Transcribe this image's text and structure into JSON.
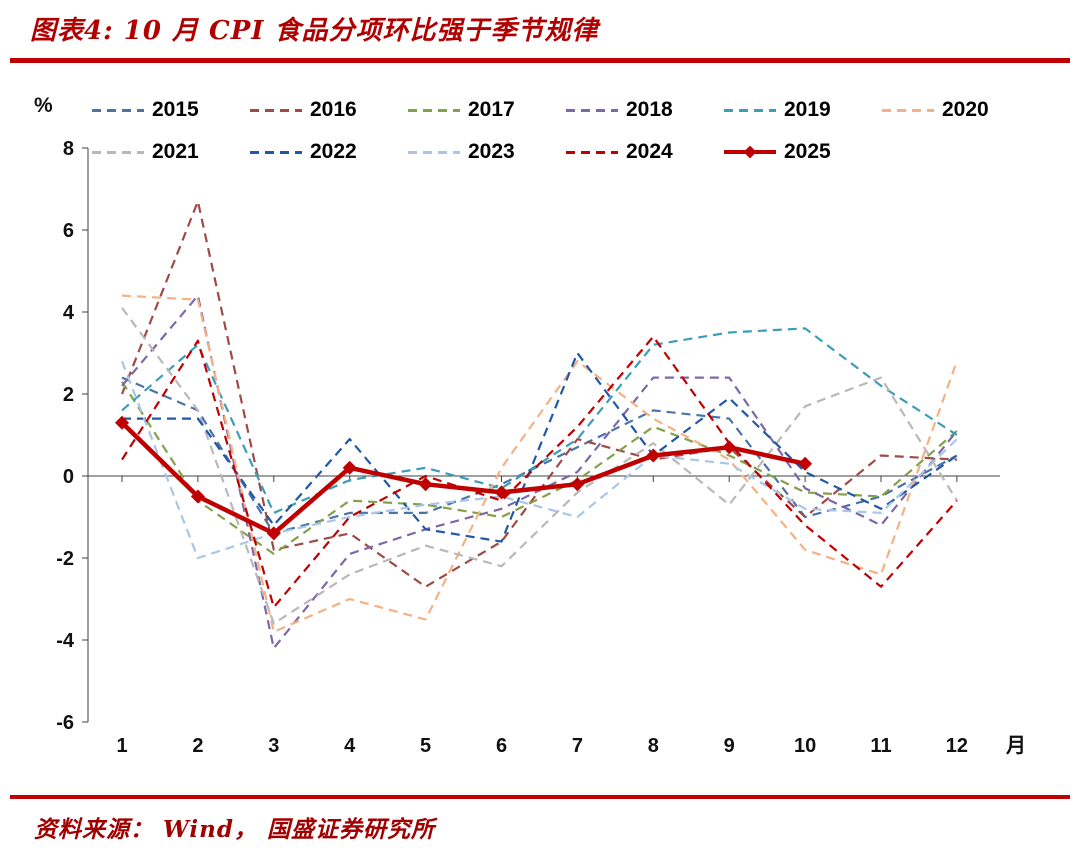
{
  "header": {
    "title": "图表4:  10 月 CPI 食品分项环比强于季节规律"
  },
  "footer": {
    "source": "资料来源： Wind， 国盛证券研究所"
  },
  "chart_data": {
    "type": "line",
    "title": "10 月 CPI 食品分项环比强于季节规律",
    "unit_label": "%",
    "x_suffix_label": "月",
    "categories": [
      1,
      2,
      3,
      4,
      5,
      6,
      7,
      8,
      9,
      10,
      11,
      12
    ],
    "ylim": [
      -6,
      8
    ],
    "yticks": [
      8,
      6,
      4,
      2,
      0,
      -2,
      -4,
      -6
    ],
    "grid": false,
    "legend_position": "top",
    "accent_color": "#c00000",
    "series": [
      {
        "name": "2015",
        "color": "#4a74a8",
        "style": "dashed",
        "values": [
          2.4,
          1.6,
          -1.4,
          -0.9,
          -0.9,
          -0.2,
          0.7,
          1.6,
          1.4,
          -1.0,
          -0.5,
          0.5
        ]
      },
      {
        "name": "2016",
        "color": "#9e4b47",
        "style": "dashed",
        "values": [
          2.0,
          6.7,
          -1.8,
          -1.4,
          -2.7,
          -1.6,
          0.9,
          0.4,
          0.7,
          -1.0,
          0.5,
          0.4
        ]
      },
      {
        "name": "2017",
        "color": "#84a04c",
        "style": "dashed",
        "values": [
          2.3,
          -0.6,
          -1.9,
          -0.6,
          -0.7,
          -1.0,
          -0.1,
          1.2,
          0.5,
          -0.4,
          -0.5,
          1.1
        ]
      },
      {
        "name": "2018",
        "color": "#7c68a8",
        "style": "dashed",
        "values": [
          2.2,
          4.4,
          -4.2,
          -1.9,
          -1.3,
          -0.8,
          0.1,
          2.4,
          2.4,
          -0.3,
          -1.2,
          1.1
        ]
      },
      {
        "name": "2019",
        "color": "#3c9db8",
        "style": "dashed",
        "values": [
          1.6,
          3.2,
          -0.9,
          -0.1,
          0.2,
          -0.3,
          0.9,
          3.2,
          3.5,
          3.6,
          2.2,
          1.0
        ]
      },
      {
        "name": "2020",
        "color": "#f5b183",
        "style": "dashed",
        "values": [
          4.4,
          4.3,
          -3.8,
          -3.0,
          -3.5,
          0.2,
          2.8,
          1.4,
          0.4,
          -1.8,
          -2.4,
          2.8
        ]
      },
      {
        "name": "2021",
        "color": "#b8b8b8",
        "style": "dashed",
        "values": [
          4.1,
          1.6,
          -3.6,
          -2.4,
          -1.7,
          -2.2,
          -0.4,
          0.8,
          -0.7,
          1.7,
          2.4,
          -0.6
        ]
      },
      {
        "name": "2022",
        "color": "#2257a5",
        "style": "dashed",
        "values": [
          1.4,
          1.4,
          -1.2,
          0.9,
          -1.3,
          -1.6,
          3.0,
          0.5,
          1.9,
          0.1,
          -0.8,
          0.5
        ]
      },
      {
        "name": "2023",
        "color": "#a9c6e8",
        "style": "dashed",
        "values": [
          2.8,
          -2.0,
          -1.4,
          -1.0,
          -0.7,
          -0.5,
          -1.0,
          0.5,
          0.3,
          -0.8,
          -0.9,
          0.9
        ]
      },
      {
        "name": "2024",
        "color": "#c00000",
        "style": "dashed",
        "values": [
          0.4,
          3.3,
          -3.2,
          -1.0,
          0.0,
          -0.6,
          1.2,
          3.4,
          0.8,
          -1.2,
          -2.7,
          -0.6
        ]
      },
      {
        "name": "2025",
        "color": "#c00000",
        "style": "solid-diamond",
        "line_width": 4.5,
        "values": [
          1.3,
          -0.5,
          -1.4,
          0.2,
          -0.2,
          -0.4,
          -0.2,
          0.5,
          0.7,
          0.3,
          null,
          null
        ]
      }
    ]
  }
}
